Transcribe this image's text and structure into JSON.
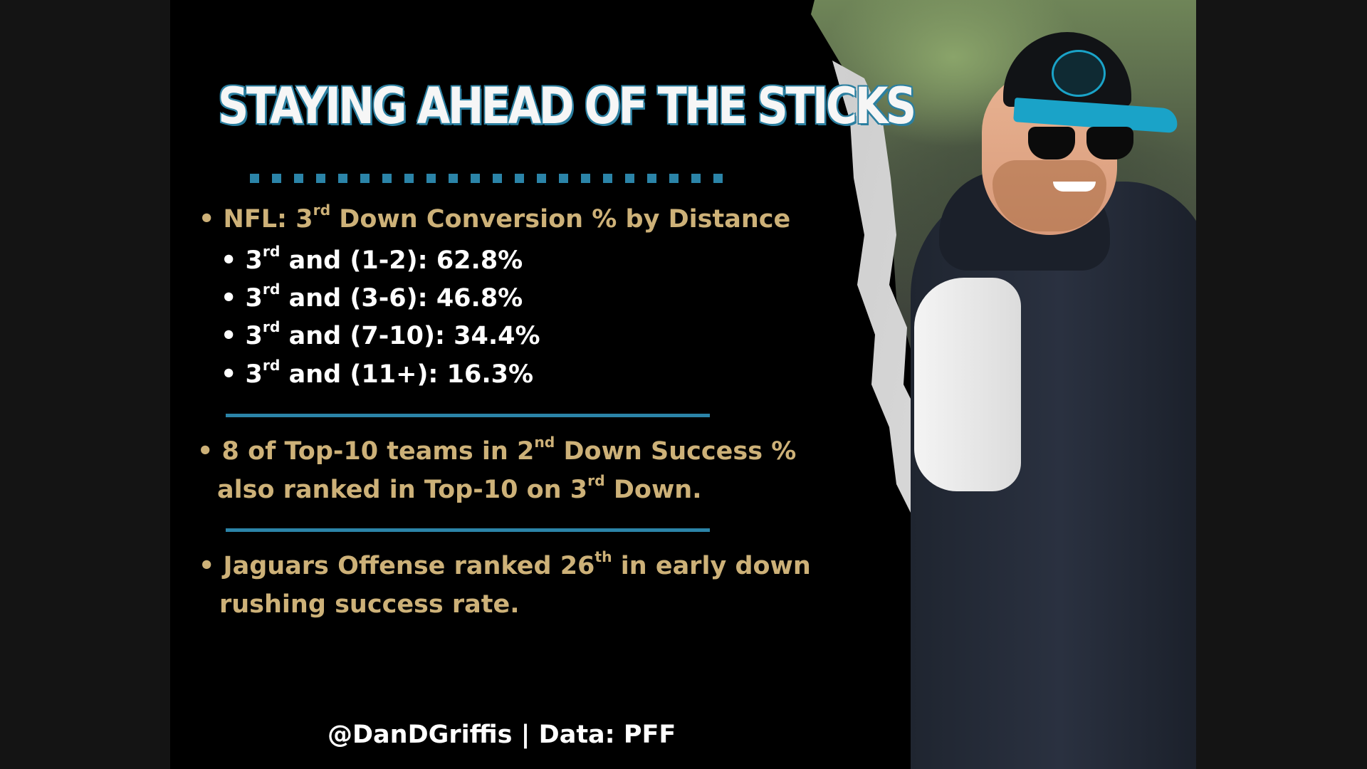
{
  "title": "STAYING AHEAD OF THE STICKS",
  "heading_bullet": {
    "prefix": "• NFL: 3",
    "sup": "rd",
    "suffix": " Down Conversion % by Distance"
  },
  "distance_rows": [
    {
      "prefix": "• 3",
      "sup": "rd",
      "suffix": " and (1-2): 62.8%"
    },
    {
      "prefix": "• 3",
      "sup": "rd",
      "suffix": " and (3-6): 46.8%"
    },
    {
      "prefix": "• 3",
      "sup": "rd",
      "suffix": " and (7-10): 34.4%"
    },
    {
      "prefix": "• 3",
      "sup": "rd",
      "suffix": " and (11+): 16.3%"
    }
  ],
  "second_down_bullet": {
    "line1_prefix": "• 8 of Top-10 teams in 2",
    "line1_sup": "nd",
    "line1_suffix": " Down Success %",
    "line2_prefix": "also ranked in Top-10 on 3",
    "line2_sup": "rd",
    "line2_suffix": " Down."
  },
  "jaguars_bullet": {
    "line1_prefix": "• Jaguars Offense ranked 26",
    "line1_sup": "th",
    "line1_suffix": " in early down",
    "line2": "rushing success rate."
  },
  "credit": "@DanDGriffis | Data: PFF",
  "colors": {
    "gold": "#cdb178",
    "accent_blue": "#2b84a8",
    "background": "#000000"
  }
}
